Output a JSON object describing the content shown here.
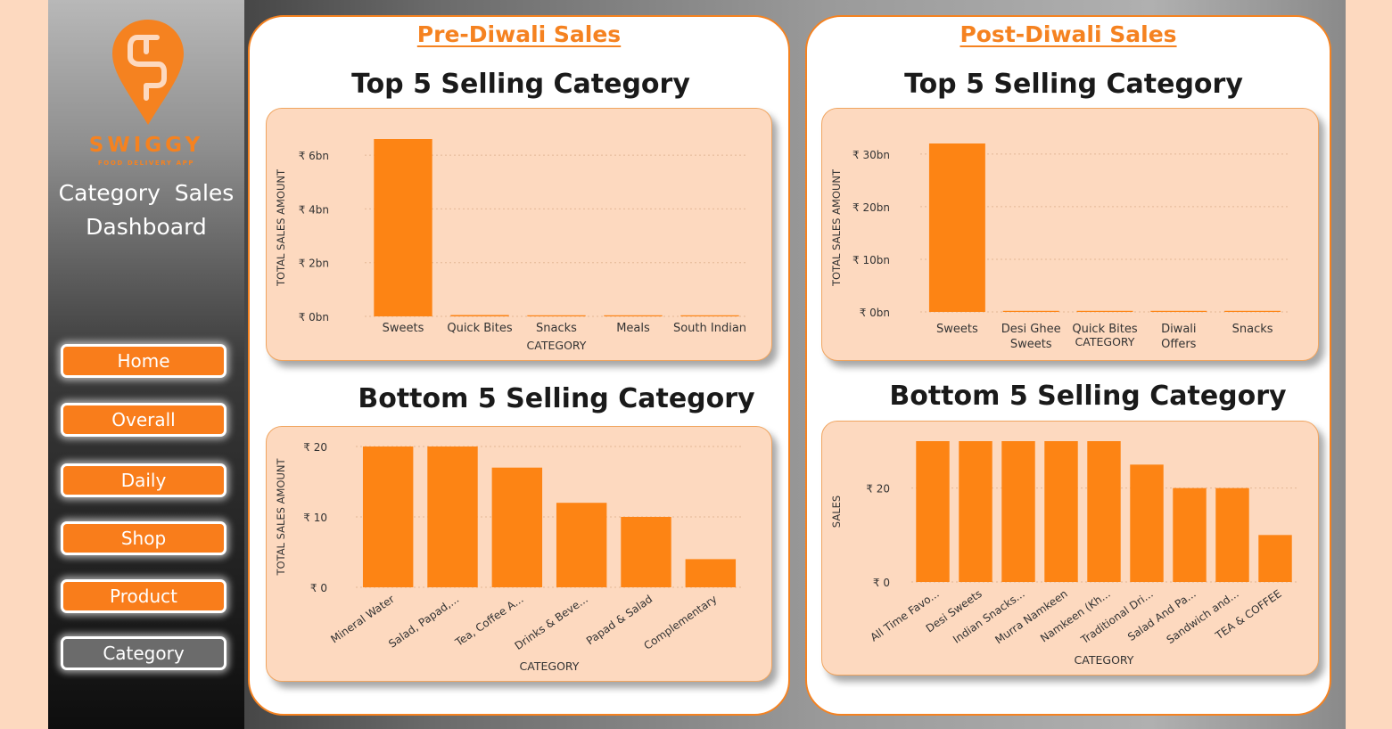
{
  "sidebar": {
    "brand": "SWIGGY",
    "brand_sub": "FOOD DELIVERY APP",
    "title_line1": "Category  Sales",
    "title_line2": "Dashboard",
    "nav": [
      {
        "label": "Home"
      },
      {
        "label": "Overall"
      },
      {
        "label": "Daily"
      },
      {
        "label": "Shop"
      },
      {
        "label": "Product"
      },
      {
        "label": "Category",
        "active": true
      }
    ]
  },
  "colors": {
    "accent": "#f58220",
    "bar": "#fd8414",
    "card": "#fdd9bf",
    "nav_active": "#6b6b6b"
  },
  "pre_diwali": {
    "heading": "Pre-Diwali Sales",
    "top_title": "Top 5 Selling Category",
    "bottom_title": "Bottom 5 Selling Category"
  },
  "post_diwali": {
    "heading": "Post-Diwali Sales",
    "top_title": "Top 5 Selling Category",
    "bottom_title": "Bottom 5 Selling Category"
  },
  "chart_data": [
    {
      "id": "pre-top",
      "type": "bar",
      "categories": [
        [
          "Sweets"
        ],
        [
          "Quick Bites"
        ],
        [
          "Snacks"
        ],
        [
          "Meals"
        ],
        [
          "South Indian"
        ]
      ],
      "values": [
        6.6,
        0.05,
        0.04,
        0.04,
        0.02
      ],
      "ylim": [
        0,
        6.6
      ],
      "ticks": [
        {
          "v": 0,
          "label": "₹ 0bn"
        },
        {
          "v": 2,
          "label": "₹ 2bn"
        },
        {
          "v": 4,
          "label": "₹ 4bn"
        },
        {
          "v": 6,
          "label": "₹ 6bn"
        }
      ],
      "xlabel": "CATEGORY",
      "ylabel": "TOTAL SALES AMOUNT",
      "grid": true,
      "rotated": false
    },
    {
      "id": "post-top",
      "type": "bar",
      "categories": [
        [
          "Sweets"
        ],
        [
          "Desi Ghee",
          "Sweets"
        ],
        [
          "Quick Bites"
        ],
        [
          "Diwali",
          "Offers"
        ],
        [
          "Snacks"
        ]
      ],
      "values": [
        32,
        0.15,
        0.12,
        0.1,
        0.08
      ],
      "ylim": [
        0,
        32
      ],
      "ticks": [
        {
          "v": 0,
          "label": "₹ 0bn"
        },
        {
          "v": 10,
          "label": "₹ 10bn"
        },
        {
          "v": 20,
          "label": "₹ 20bn"
        },
        {
          "v": 30,
          "label": "₹ 30bn"
        }
      ],
      "xlabel": "CATEGORY",
      "ylabel": "TOTAL SALES AMOUNT",
      "grid": true,
      "rotated": false
    },
    {
      "id": "pre-bottom",
      "type": "bar",
      "categories": [
        [
          "Mineral Water"
        ],
        [
          "Salad, Papad,..."
        ],
        [
          "Tea, Coffee A..."
        ],
        [
          "Drinks & Beve..."
        ],
        [
          "Papad & Salad"
        ],
        [
          "Complementary"
        ]
      ],
      "values": [
        20,
        20,
        17,
        12,
        10,
        4
      ],
      "ylim": [
        0,
        20
      ],
      "ticks": [
        {
          "v": 0,
          "label": "₹ 0"
        },
        {
          "v": 10,
          "label": "₹ 10"
        },
        {
          "v": 20,
          "label": "₹ 20"
        }
      ],
      "xlabel": "CATEGORY",
      "ylabel": "TOTAL SALES AMOUNT",
      "grid": true,
      "rotated": true
    },
    {
      "id": "post-bottom",
      "type": "bar",
      "categories": [
        [
          "All Time Favo..."
        ],
        [
          "Desi Sweets"
        ],
        [
          "Indian Snacks..."
        ],
        [
          "Murra Namkeen"
        ],
        [
          "Namkeen (Kh..."
        ],
        [
          "Traditional Dri..."
        ],
        [
          "Salad And Pa..."
        ],
        [
          "Sandwich and..."
        ],
        [
          "TEA & COFFEE"
        ]
      ],
      "values": [
        30,
        30,
        30,
        30,
        30,
        25,
        20,
        20,
        10
      ],
      "ylim": [
        0,
        30
      ],
      "ticks": [
        {
          "v": 0,
          "label": "₹ 0"
        },
        {
          "v": 20,
          "label": "₹ 20"
        }
      ],
      "xlabel": "CATEGORY",
      "ylabel": "SALES",
      "grid": true,
      "rotated": true
    }
  ]
}
